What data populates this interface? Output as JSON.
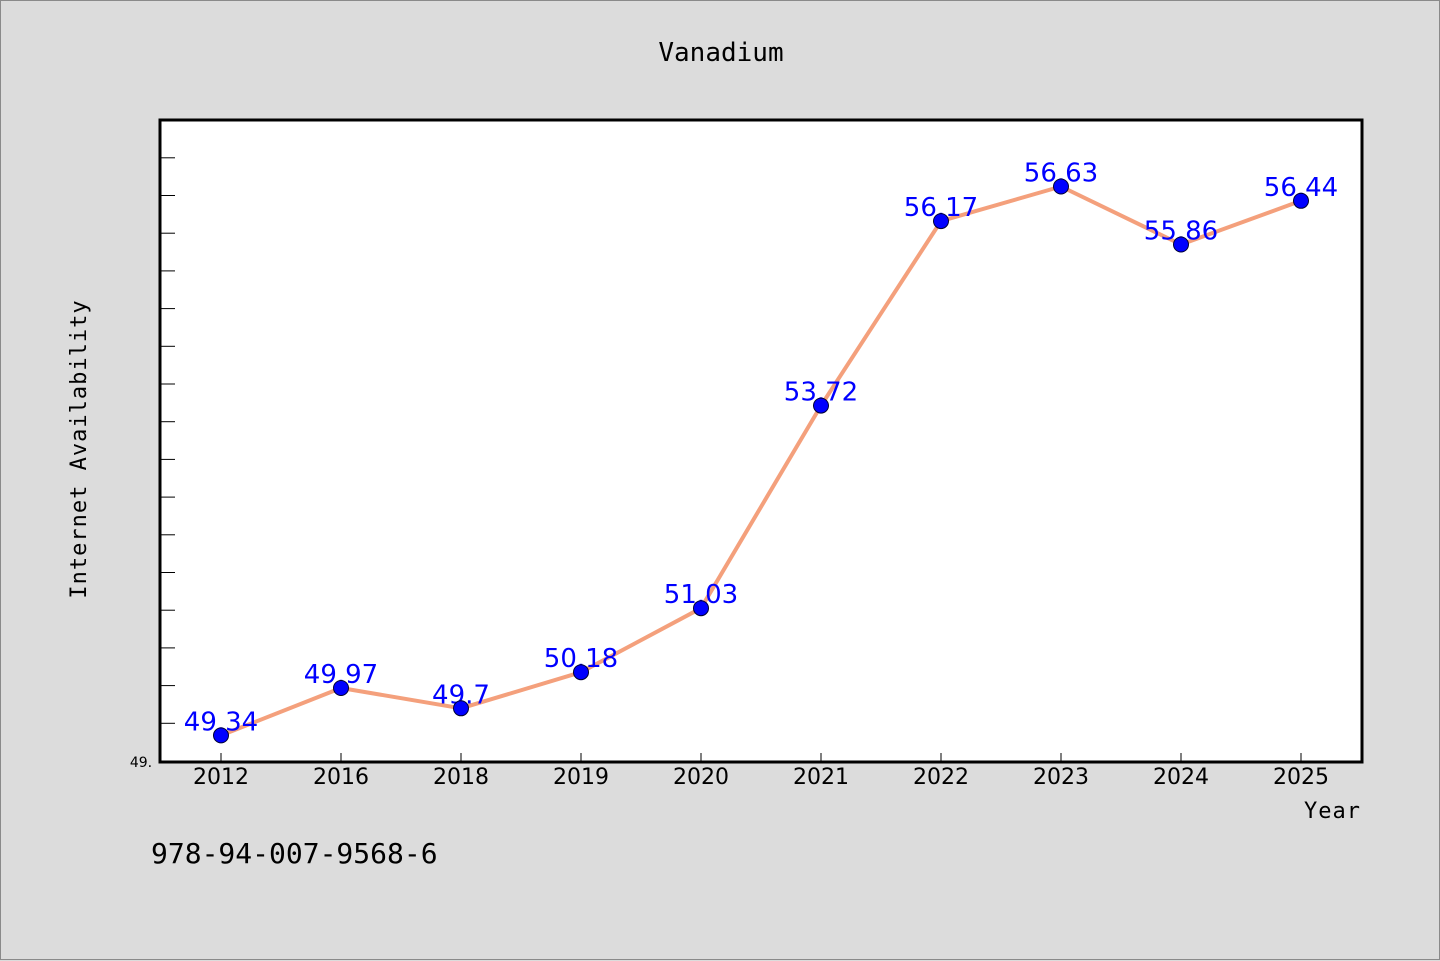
{
  "chart_data": {
    "type": "line",
    "title": "Vanadium",
    "xlabel": "Year",
    "ylabel": "Internet Availability",
    "categories": [
      "2012",
      "2016",
      "2018",
      "2019",
      "2020",
      "2021",
      "2022",
      "2023",
      "2024",
      "2025"
    ],
    "series": [
      {
        "values": [
          49.34,
          49.97,
          49.7,
          50.18,
          51.03,
          53.72,
          56.17,
          56.63,
          55.86,
          56.44
        ],
        "data_labels": [
          "49.34",
          "49.97",
          "49.7",
          "50.18",
          "51.03",
          "53.72",
          "56.17",
          "56.63",
          "55.86",
          "56.44"
        ],
        "line_color": "#f4a07c",
        "marker_color": "#0000ff"
      }
    ],
    "ylim": [
      49.0,
      57.5
    ],
    "y_tick_label": "49.",
    "grid": false,
    "legend": "none",
    "background_color": "#dcdcdc",
    "plot_background": "#ffffff"
  },
  "caption": "978-94-007-9568-6"
}
